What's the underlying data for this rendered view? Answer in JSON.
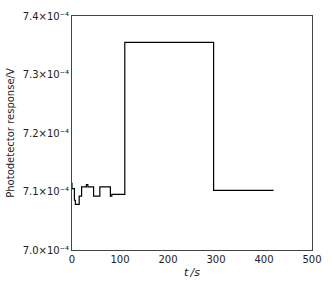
{
  "chart_data": {
    "type": "line",
    "xlabel": "t /s",
    "ylabel": "Photodetector response/V",
    "x": [
      0,
      0,
      5,
      5,
      7,
      7,
      12,
      12,
      15,
      15,
      20,
      20,
      22,
      22,
      30,
      30,
      33,
      33,
      45,
      45,
      48,
      48,
      58,
      58,
      62,
      62,
      80,
      80,
      83,
      83,
      110,
      110,
      120,
      120,
      295,
      295,
      308,
      308,
      420
    ],
    "values": [
      0.0007115,
      0.0007105,
      0.0007105,
      0.0007085,
      0.0007085,
      0.0007078,
      0.0007078,
      0.0007078,
      0.0007078,
      0.0007092,
      0.0007092,
      0.0007108,
      0.0007108,
      0.0007108,
      0.0007108,
      0.0007112,
      0.0007112,
      0.0007108,
      0.0007108,
      0.0007092,
      0.0007092,
      0.0007092,
      0.0007092,
      0.0007108,
      0.0007108,
      0.0007108,
      0.0007108,
      0.0007092,
      0.0007092,
      0.0007095,
      0.0007095,
      0.0007355,
      0.0007355,
      0.0007355,
      0.0007355,
      0.0007102,
      0.0007102,
      0.0007102,
      0.0007102
    ],
    "color": "#000000",
    "xlim": [
      0,
      500
    ],
    "ylim": [
      0.0007,
      0.00074
    ],
    "xticks": [
      0,
      100,
      200,
      300,
      400,
      500
    ],
    "yticks": [
      {
        "value": 0.0007,
        "label": "7.0×10⁻⁴"
      },
      {
        "value": 0.00071,
        "label": "7.1×10⁻⁴"
      },
      {
        "value": 0.00072,
        "label": "7.2×10⁻⁴"
      },
      {
        "value": 0.00073,
        "label": "7.3×10⁻⁴"
      },
      {
        "value": 0.00074,
        "label": "7.4×10⁻⁴"
      }
    ],
    "grid": false
  }
}
